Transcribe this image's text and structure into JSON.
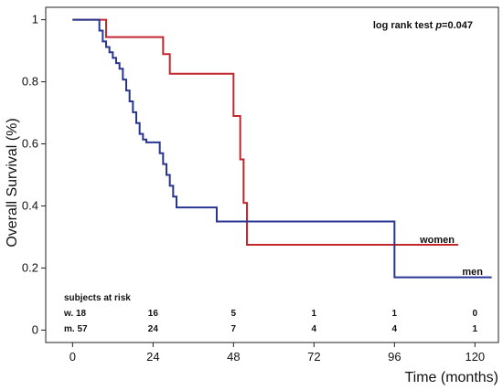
{
  "chart_data": {
    "type": "line",
    "step": true,
    "ylabel": "Overall Survival (%)",
    "xlabel": "Time (months)",
    "xlim": [
      -8,
      127
    ],
    "ylim": [
      -0.04,
      1.04
    ],
    "x_ticks": [
      0,
      24,
      48,
      72,
      96,
      120
    ],
    "y_ticks": [
      0,
      0.2,
      0.4,
      0.6,
      0.8,
      1
    ],
    "y_tick_labels": [
      "0",
      "0.2",
      "0.4",
      "0.6",
      "0.8",
      "1"
    ],
    "grid": false,
    "annotation": {
      "prefix": "log rank test ",
      "p_symbol": "p",
      "p_value": "=0.047"
    },
    "series": [
      {
        "name": "women",
        "color": "#c1272d",
        "x": [
          0,
          10,
          10,
          27,
          27,
          29,
          29,
          48,
          48,
          50,
          50,
          51,
          51,
          52,
          52,
          53,
          53,
          115
        ],
        "y": [
          1,
          1,
          0.944,
          0.944,
          0.889,
          0.889,
          0.826,
          0.826,
          0.69,
          0.69,
          0.55,
          0.55,
          0.41,
          0.41,
          0.275,
          0.275,
          0.275,
          0.275
        ]
      },
      {
        "name": "men",
        "color": "#283593",
        "x": [
          0,
          8,
          8,
          9,
          9,
          10,
          10,
          11,
          11,
          12,
          12,
          13,
          13,
          14,
          14,
          15,
          15,
          16,
          16,
          17,
          17,
          18,
          18,
          19,
          19,
          20,
          20,
          21,
          21,
          22,
          22,
          23,
          23,
          26,
          26,
          27,
          27,
          28,
          28,
          29,
          29,
          30,
          30,
          31,
          31,
          33,
          33,
          43,
          43,
          96,
          96,
          125
        ],
        "y": [
          1,
          1,
          0.965,
          0.965,
          0.93,
          0.93,
          0.912,
          0.912,
          0.895,
          0.895,
          0.877,
          0.877,
          0.86,
          0.86,
          0.842,
          0.842,
          0.807,
          0.807,
          0.772,
          0.772,
          0.737,
          0.737,
          0.702,
          0.702,
          0.667,
          0.667,
          0.632,
          0.632,
          0.614,
          0.614,
          0.605,
          0.605,
          0.605,
          0.605,
          0.57,
          0.57,
          0.535,
          0.535,
          0.5,
          0.5,
          0.465,
          0.465,
          0.43,
          0.43,
          0.395,
          0.395,
          0.395,
          0.395,
          0.35,
          0.35,
          0.17,
          0.17
        ]
      }
    ],
    "risk_table": {
      "title": "subjects at risk",
      "rows": [
        {
          "label": "w. 18",
          "values": [
            "16",
            "5",
            "1",
            "1",
            "0"
          ]
        },
        {
          "label": "m. 57",
          "values": [
            "24",
            "7",
            "4",
            "4",
            "1"
          ]
        }
      ]
    }
  }
}
